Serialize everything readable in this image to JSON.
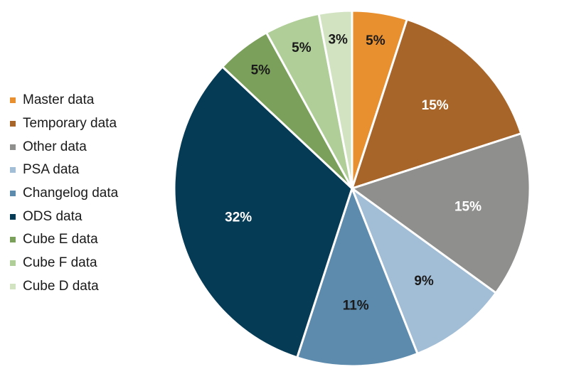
{
  "chart_data": {
    "type": "pie",
    "title": "",
    "legend_position": "left",
    "slices": [
      {
        "name": "Master data",
        "value": 5,
        "label": "5%",
        "color": "#E8902F",
        "label_color": "#1a1a1a"
      },
      {
        "name": "Temporary data",
        "value": 15,
        "label": "15%",
        "color": "#A8652A",
        "label_color": "#ffffff"
      },
      {
        "name": "Other data",
        "value": 15,
        "label": "15%",
        "color": "#8F8F8E",
        "label_color": "#ffffff"
      },
      {
        "name": "PSA data",
        "value": 9,
        "label": "9%",
        "color": "#A2BDD6",
        "label_color": "#1a1a1a"
      },
      {
        "name": "Changelog data",
        "value": 11,
        "label": "11%",
        "color": "#5C8BAE",
        "label_color": "#1a1a1a"
      },
      {
        "name": "ODS data",
        "value": 32,
        "label": "32%",
        "color": "#063B56",
        "label_color": "#ffffff"
      },
      {
        "name": "Cube E data",
        "value": 5,
        "label": "5%",
        "color": "#7BA05B",
        "label_color": "#1a1a1a"
      },
      {
        "name": "Cube F data",
        "value": 5,
        "label": "5%",
        "color": "#B0CE98",
        "label_color": "#1a1a1a"
      },
      {
        "name": "Cube D data",
        "value": 3,
        "label": "3%",
        "color": "#D1E3C1",
        "label_color": "#1a1a1a"
      }
    ]
  }
}
